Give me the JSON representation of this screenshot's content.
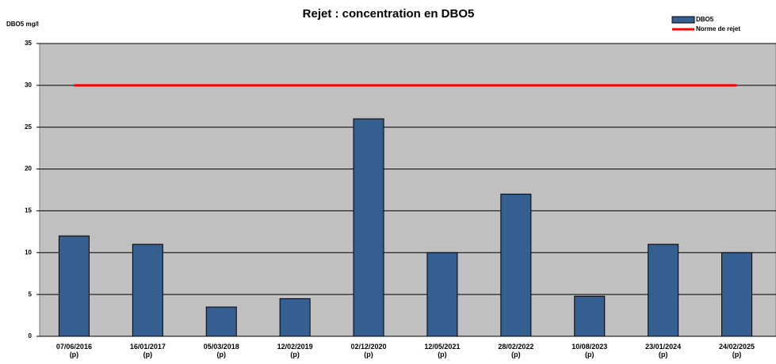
{
  "chart_data": {
    "type": "bar",
    "title": "Rejet : concentration en DBO5",
    "y_label": "DBO5 mg/l",
    "categories": [
      "07/06/2016\n(p)",
      "16/01/2017\n(p)",
      "05/03/2018\n(p)",
      "12/02/2019\n(p)",
      "02/12/2020\n(p)",
      "12/05/2021\n(p)",
      "28/02/2022\n(p)",
      "10/08/2023\n(p)",
      "23/01/2024\n(p)",
      "24/02/2025\n(p)"
    ],
    "series": [
      {
        "name": "DBO5",
        "type": "bar",
        "color": "#355e91",
        "values": [
          12,
          11,
          3.5,
          4.5,
          26,
          10,
          17,
          4.8,
          11,
          10
        ]
      },
      {
        "name": "Norme de rejet",
        "type": "line",
        "color": "#ff0000",
        "values": [
          30,
          30,
          30,
          30,
          30,
          30,
          30,
          30,
          30,
          30
        ]
      }
    ],
    "ylim": [
      0,
      35
    ],
    "yticks": [
      0,
      5,
      10,
      15,
      20,
      25,
      30,
      35
    ],
    "grid": true,
    "legend": "top-right",
    "plot_background": "#c0c0c0"
  }
}
